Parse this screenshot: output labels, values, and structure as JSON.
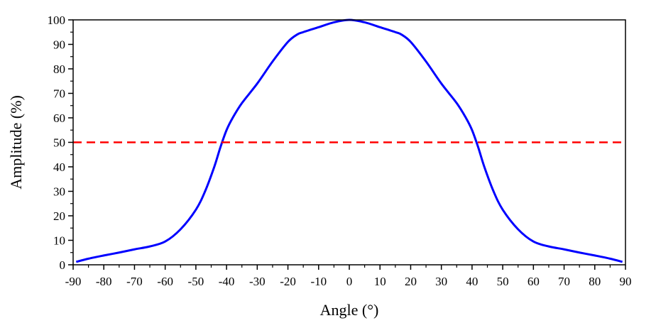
{
  "chart_data": {
    "type": "line",
    "xlabel": "Angle (°)",
    "ylabel": "Amplitude (%)",
    "xlim": [
      -90,
      90
    ],
    "ylim": [
      0,
      100
    ],
    "x_ticks": [
      -90,
      -80,
      -70,
      -60,
      -50,
      -40,
      -30,
      -20,
      -10,
      0,
      10,
      20,
      30,
      40,
      50,
      60,
      70,
      80,
      90
    ],
    "y_ticks": [
      0,
      10,
      20,
      30,
      40,
      50,
      60,
      70,
      80,
      90,
      100
    ],
    "grid": false,
    "series": [
      {
        "color": "#0000ff",
        "style": "solid",
        "x": [
          -89,
          -85,
          -80,
          -75,
          -70,
          -65,
          -60,
          -55,
          -50,
          -47,
          -44,
          -42,
          -40,
          -38,
          -35,
          -30,
          -25,
          -20,
          -17,
          -15,
          -10,
          -5,
          0,
          5,
          10,
          15,
          17,
          20,
          25,
          30,
          35,
          38,
          40,
          42,
          44,
          47,
          50,
          55,
          60,
          65,
          70,
          75,
          80,
          85,
          89
        ],
        "y": [
          1.2,
          2.5,
          3.8,
          5.0,
          6.3,
          7.5,
          9.5,
          14.5,
          22.5,
          30.0,
          40.0,
          48.0,
          55.0,
          60.0,
          66.0,
          74.0,
          83.0,
          91.0,
          94.0,
          95.0,
          97.0,
          99.0,
          100.0,
          99.0,
          97.0,
          95.0,
          94.0,
          91.0,
          83.0,
          74.0,
          66.0,
          60.0,
          55.0,
          48.0,
          40.0,
          30.0,
          22.5,
          14.5,
          9.5,
          7.5,
          6.3,
          5.0,
          3.8,
          2.5,
          1.2
        ]
      },
      {
        "color": "#ff0000",
        "style": "dashed",
        "x": [
          -90,
          90
        ],
        "y": [
          50,
          50
        ]
      }
    ]
  }
}
